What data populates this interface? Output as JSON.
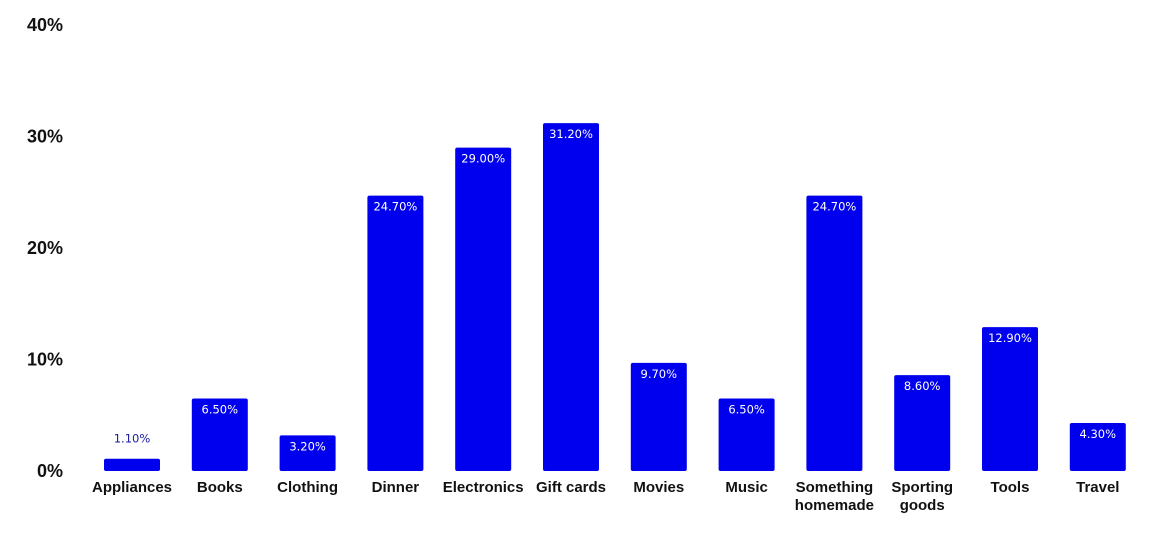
{
  "chart_data": {
    "type": "bar",
    "categories": [
      "Appliances",
      "Books",
      "Clothing",
      "Dinner",
      "Electronics",
      "Gift cards",
      "Movies",
      "Music",
      "Something homemade",
      "Sporting goods",
      "Tools",
      "Travel"
    ],
    "values": [
      1.1,
      6.5,
      3.2,
      24.7,
      29.0,
      31.2,
      9.7,
      6.5,
      24.7,
      8.6,
      12.9,
      4.3
    ],
    "data_labels": [
      "1.10%",
      "6.50%",
      "3.20%",
      "24.70%",
      "29.00%",
      "31.20%",
      "9.70%",
      "6.50%",
      "24.70%",
      "8.60%",
      "12.90%",
      "4.30%"
    ],
    "y_ticks": [
      "0%",
      "10%",
      "20%",
      "30%",
      "40%"
    ],
    "ylim": [
      0,
      40
    ],
    "grid": false,
    "legend": "none",
    "title": "",
    "xlabel": "",
    "ylabel": "",
    "colors": {
      "bar": "#0000ee",
      "label_inside": "#ffffff",
      "label_outside": "#1a1aa6",
      "text": "#111111"
    }
  }
}
